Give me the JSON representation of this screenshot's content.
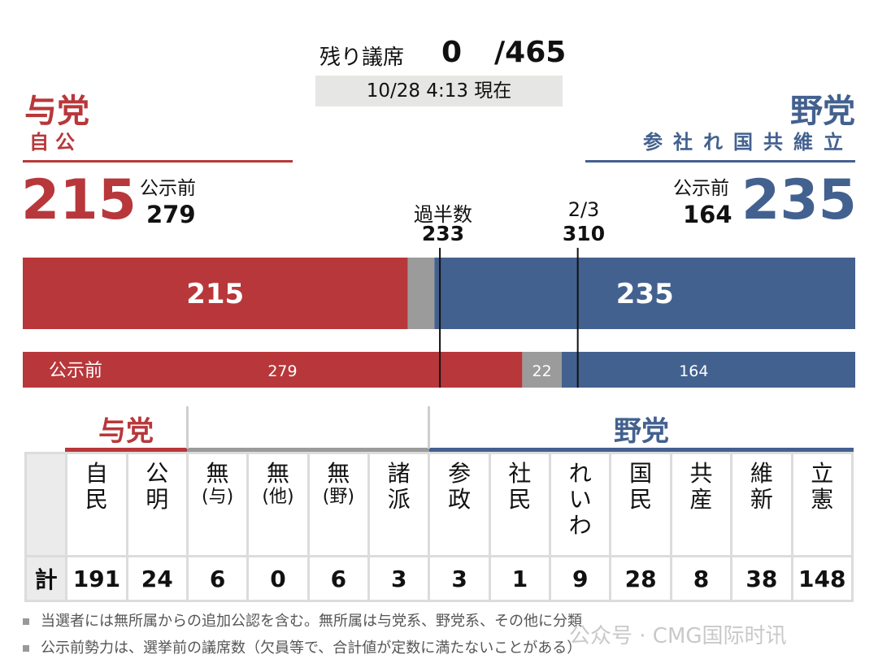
{
  "header": {
    "remaining_label": "残り議席",
    "remaining_value": "0",
    "total_seats": "/465",
    "timestamp": "10/28 4:13 現在"
  },
  "ruling": {
    "title": "与党",
    "subtitle": "自公",
    "total": "215",
    "prev_label": "公示前",
    "prev_value": "279"
  },
  "opposition": {
    "title": "野党",
    "subtitle": "参社れ国共維立",
    "total": "235",
    "prev_label": "公示前",
    "prev_value": "164"
  },
  "thresholds": {
    "majority_label": "過半数",
    "majority_value": "233",
    "two_thirds_label": "2/3",
    "two_thirds_value": "310"
  },
  "chart_data": {
    "type": "bar",
    "total_seats": 465,
    "colors": {
      "ruling": "#b8373a",
      "other": "#9b9b9b",
      "opposition": "#43618f"
    },
    "current": {
      "ruling": 215,
      "other": 15,
      "opposition": 235
    },
    "previous": {
      "label": "公示前",
      "ruling": 279,
      "other": 22,
      "opposition": 164
    },
    "lines": [
      233,
      310
    ]
  },
  "table": {
    "ruling_head": "与党",
    "opposition_head": "野党",
    "sum_label": "計",
    "parties": [
      {
        "name": [
          "自",
          "民"
        ],
        "seats": "191",
        "group": "ruling"
      },
      {
        "name": [
          "公",
          "明"
        ],
        "seats": "24",
        "group": "ruling"
      },
      {
        "name": [
          "無",
          "(与)"
        ],
        "seats": "6",
        "group": "other"
      },
      {
        "name": [
          "無",
          "(他)"
        ],
        "seats": "0",
        "group": "other"
      },
      {
        "name": [
          "無",
          "(野)"
        ],
        "seats": "6",
        "group": "other"
      },
      {
        "name": [
          "諸",
          "派"
        ],
        "seats": "3",
        "group": "other"
      },
      {
        "name": [
          "参",
          "政"
        ],
        "seats": "3",
        "group": "opposition"
      },
      {
        "name": [
          "社",
          "民"
        ],
        "seats": "1",
        "group": "opposition"
      },
      {
        "name": [
          "れ",
          "い",
          "わ"
        ],
        "seats": "9",
        "group": "opposition"
      },
      {
        "name": [
          "国",
          "民"
        ],
        "seats": "28",
        "group": "opposition"
      },
      {
        "name": [
          "共",
          "産"
        ],
        "seats": "8",
        "group": "opposition"
      },
      {
        "name": [
          "維",
          "新"
        ],
        "seats": "38",
        "group": "opposition"
      },
      {
        "name": [
          "立",
          "憲"
        ],
        "seats": "148",
        "group": "opposition"
      }
    ]
  },
  "notes": [
    "当選者には無所属からの追加公認を含む。無所属は与党系、野党系、その他に分類",
    "公示前勢力は、選挙前の議席数（欠員等で、合計値が定数に満たないことがある）"
  ],
  "watermark": "公众号 · CMG国际时讯"
}
